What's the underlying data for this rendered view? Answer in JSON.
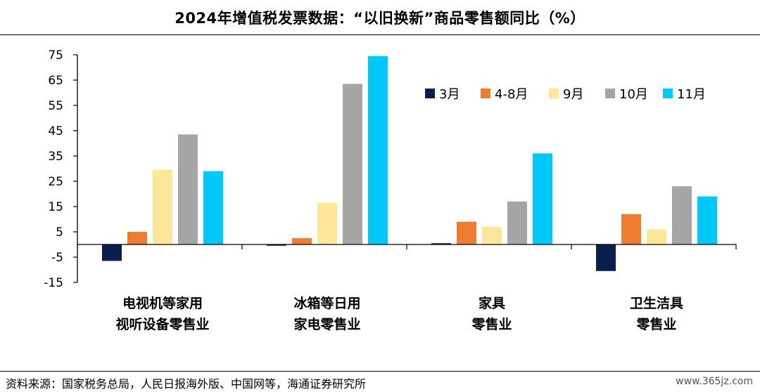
{
  "header": {
    "title": "2024年增值税发票数据：“以旧换新”商品零售额同比（%）"
  },
  "footer": {
    "source": "资料来源：国家税务总局，人民日报海外版、中国网等，海通证券研究所",
    "watermark": "www.365jz.com"
  },
  "chart_data": {
    "type": "bar",
    "title": "2024年增值税发票数据：“以旧换新”商品零售额同比（%）",
    "categories": [
      [
        "电视机等家用",
        "视听设备零售业"
      ],
      [
        "冰箱等日用",
        "家电零售业"
      ],
      [
        "家具",
        "零售业"
      ],
      [
        "卫生洁具",
        "零售业"
      ]
    ],
    "series": [
      {
        "name": "3月",
        "color": "#0b1f4f",
        "values": [
          -6.5,
          -0.5,
          0.5,
          -10.5
        ]
      },
      {
        "name": "4-8月",
        "color": "#ed7d31",
        "values": [
          5,
          2.5,
          9,
          12
        ]
      },
      {
        "name": "9月",
        "color": "#ffe699",
        "values": [
          29.5,
          16.5,
          7,
          6
        ]
      },
      {
        "name": "10月",
        "color": "#a5a5a5",
        "values": [
          43.5,
          63.5,
          17,
          23
        ]
      },
      {
        "name": "11月",
        "color": "#00c8f8",
        "values": [
          29,
          74.5,
          36,
          19
        ]
      }
    ],
    "ylim": [
      -15,
      75
    ],
    "yticks": [
      75,
      65,
      55,
      45,
      35,
      25,
      15,
      5,
      -5,
      -15
    ],
    "legend_position": "top-right",
    "grid": false
  }
}
